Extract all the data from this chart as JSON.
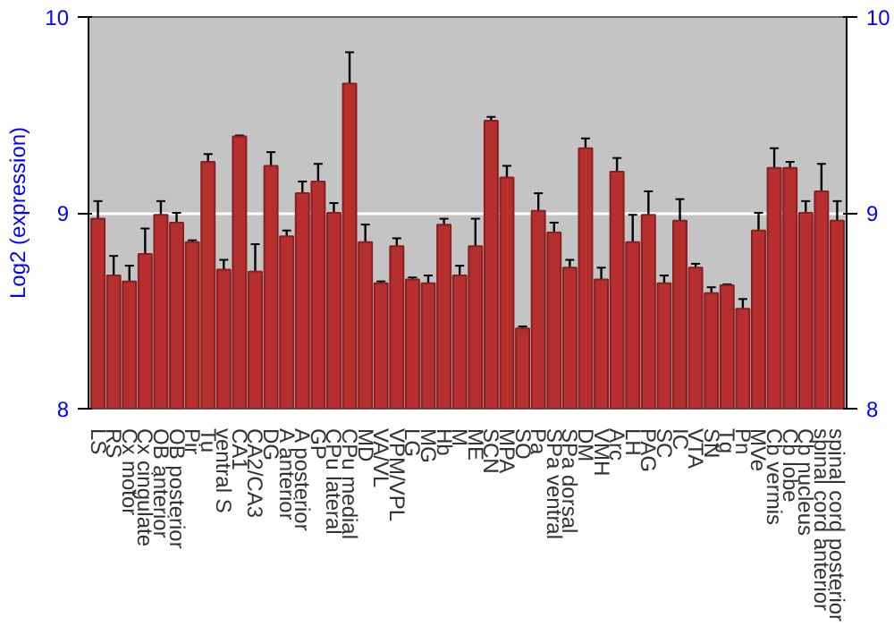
{
  "chart_data": {
    "type": "bar",
    "ylabel": "Log2 (expression)",
    "categories": [
      "LS",
      "RS",
      "Cx motor",
      "Cx cingulate",
      "OB anterior",
      "OB posterior",
      "Pir",
      "Tu",
      "ventral S",
      "CA1",
      "CA2/CA3",
      "DG",
      "A anterior",
      "A posterior",
      "GP",
      "CPu lateral",
      "CPu medial",
      "MD",
      "VA/VL",
      "VPM/VPL",
      "LG",
      "MG",
      "Hb",
      "M",
      "ME",
      "SCN",
      "MPA",
      "SO",
      "Pa",
      "SPa ventral",
      "SPa dorsal",
      "DM",
      "VMH",
      "Arc",
      "LH",
      "PAG",
      "SC",
      "IC",
      "VTA",
      "SN",
      "Tg",
      "Pn",
      "MVe",
      "Cb vermis",
      "Cb lobe",
      "Cb nucleus",
      "spinal cord anterior",
      "spinal cord posterior"
    ],
    "values": [
      8.97,
      8.68,
      8.65,
      8.79,
      8.99,
      8.95,
      8.85,
      9.26,
      8.71,
      9.39,
      8.7,
      9.24,
      8.88,
      9.1,
      9.16,
      9.0,
      9.66,
      8.85,
      8.64,
      8.83,
      8.66,
      8.64,
      8.94,
      8.68,
      8.83,
      9.47,
      9.18,
      8.41,
      9.01,
      8.9,
      8.72,
      9.33,
      8.66,
      9.21,
      8.85,
      8.99,
      8.64,
      8.96,
      8.72,
      8.59,
      8.63,
      8.51,
      8.91,
      9.23,
      9.23,
      9.0,
      9.11,
      8.96
    ],
    "errors": [
      0.09,
      0.1,
      0.08,
      0.13,
      0.07,
      0.05,
      0.01,
      0.04,
      0.05,
      0.005,
      0.14,
      0.07,
      0.03,
      0.06,
      0.09,
      0.05,
      0.16,
      0.09,
      0.01,
      0.04,
      0.01,
      0.04,
      0.03,
      0.05,
      0.14,
      0.02,
      0.06,
      0.01,
      0.09,
      0.05,
      0.04,
      0.05,
      0.06,
      0.07,
      0.14,
      0.12,
      0.04,
      0.11,
      0.02,
      0.03,
      0.005,
      0.05,
      0.09,
      0.1,
      0.03,
      0.06,
      0.14,
      0.1
    ],
    "color": "#b52f2f",
    "ylim": [
      8,
      10
    ],
    "yticks": [
      8,
      9,
      10
    ],
    "y2lim": [
      8,
      10
    ],
    "y2ticks": [
      8,
      9,
      10
    ],
    "grid": "y"
  }
}
